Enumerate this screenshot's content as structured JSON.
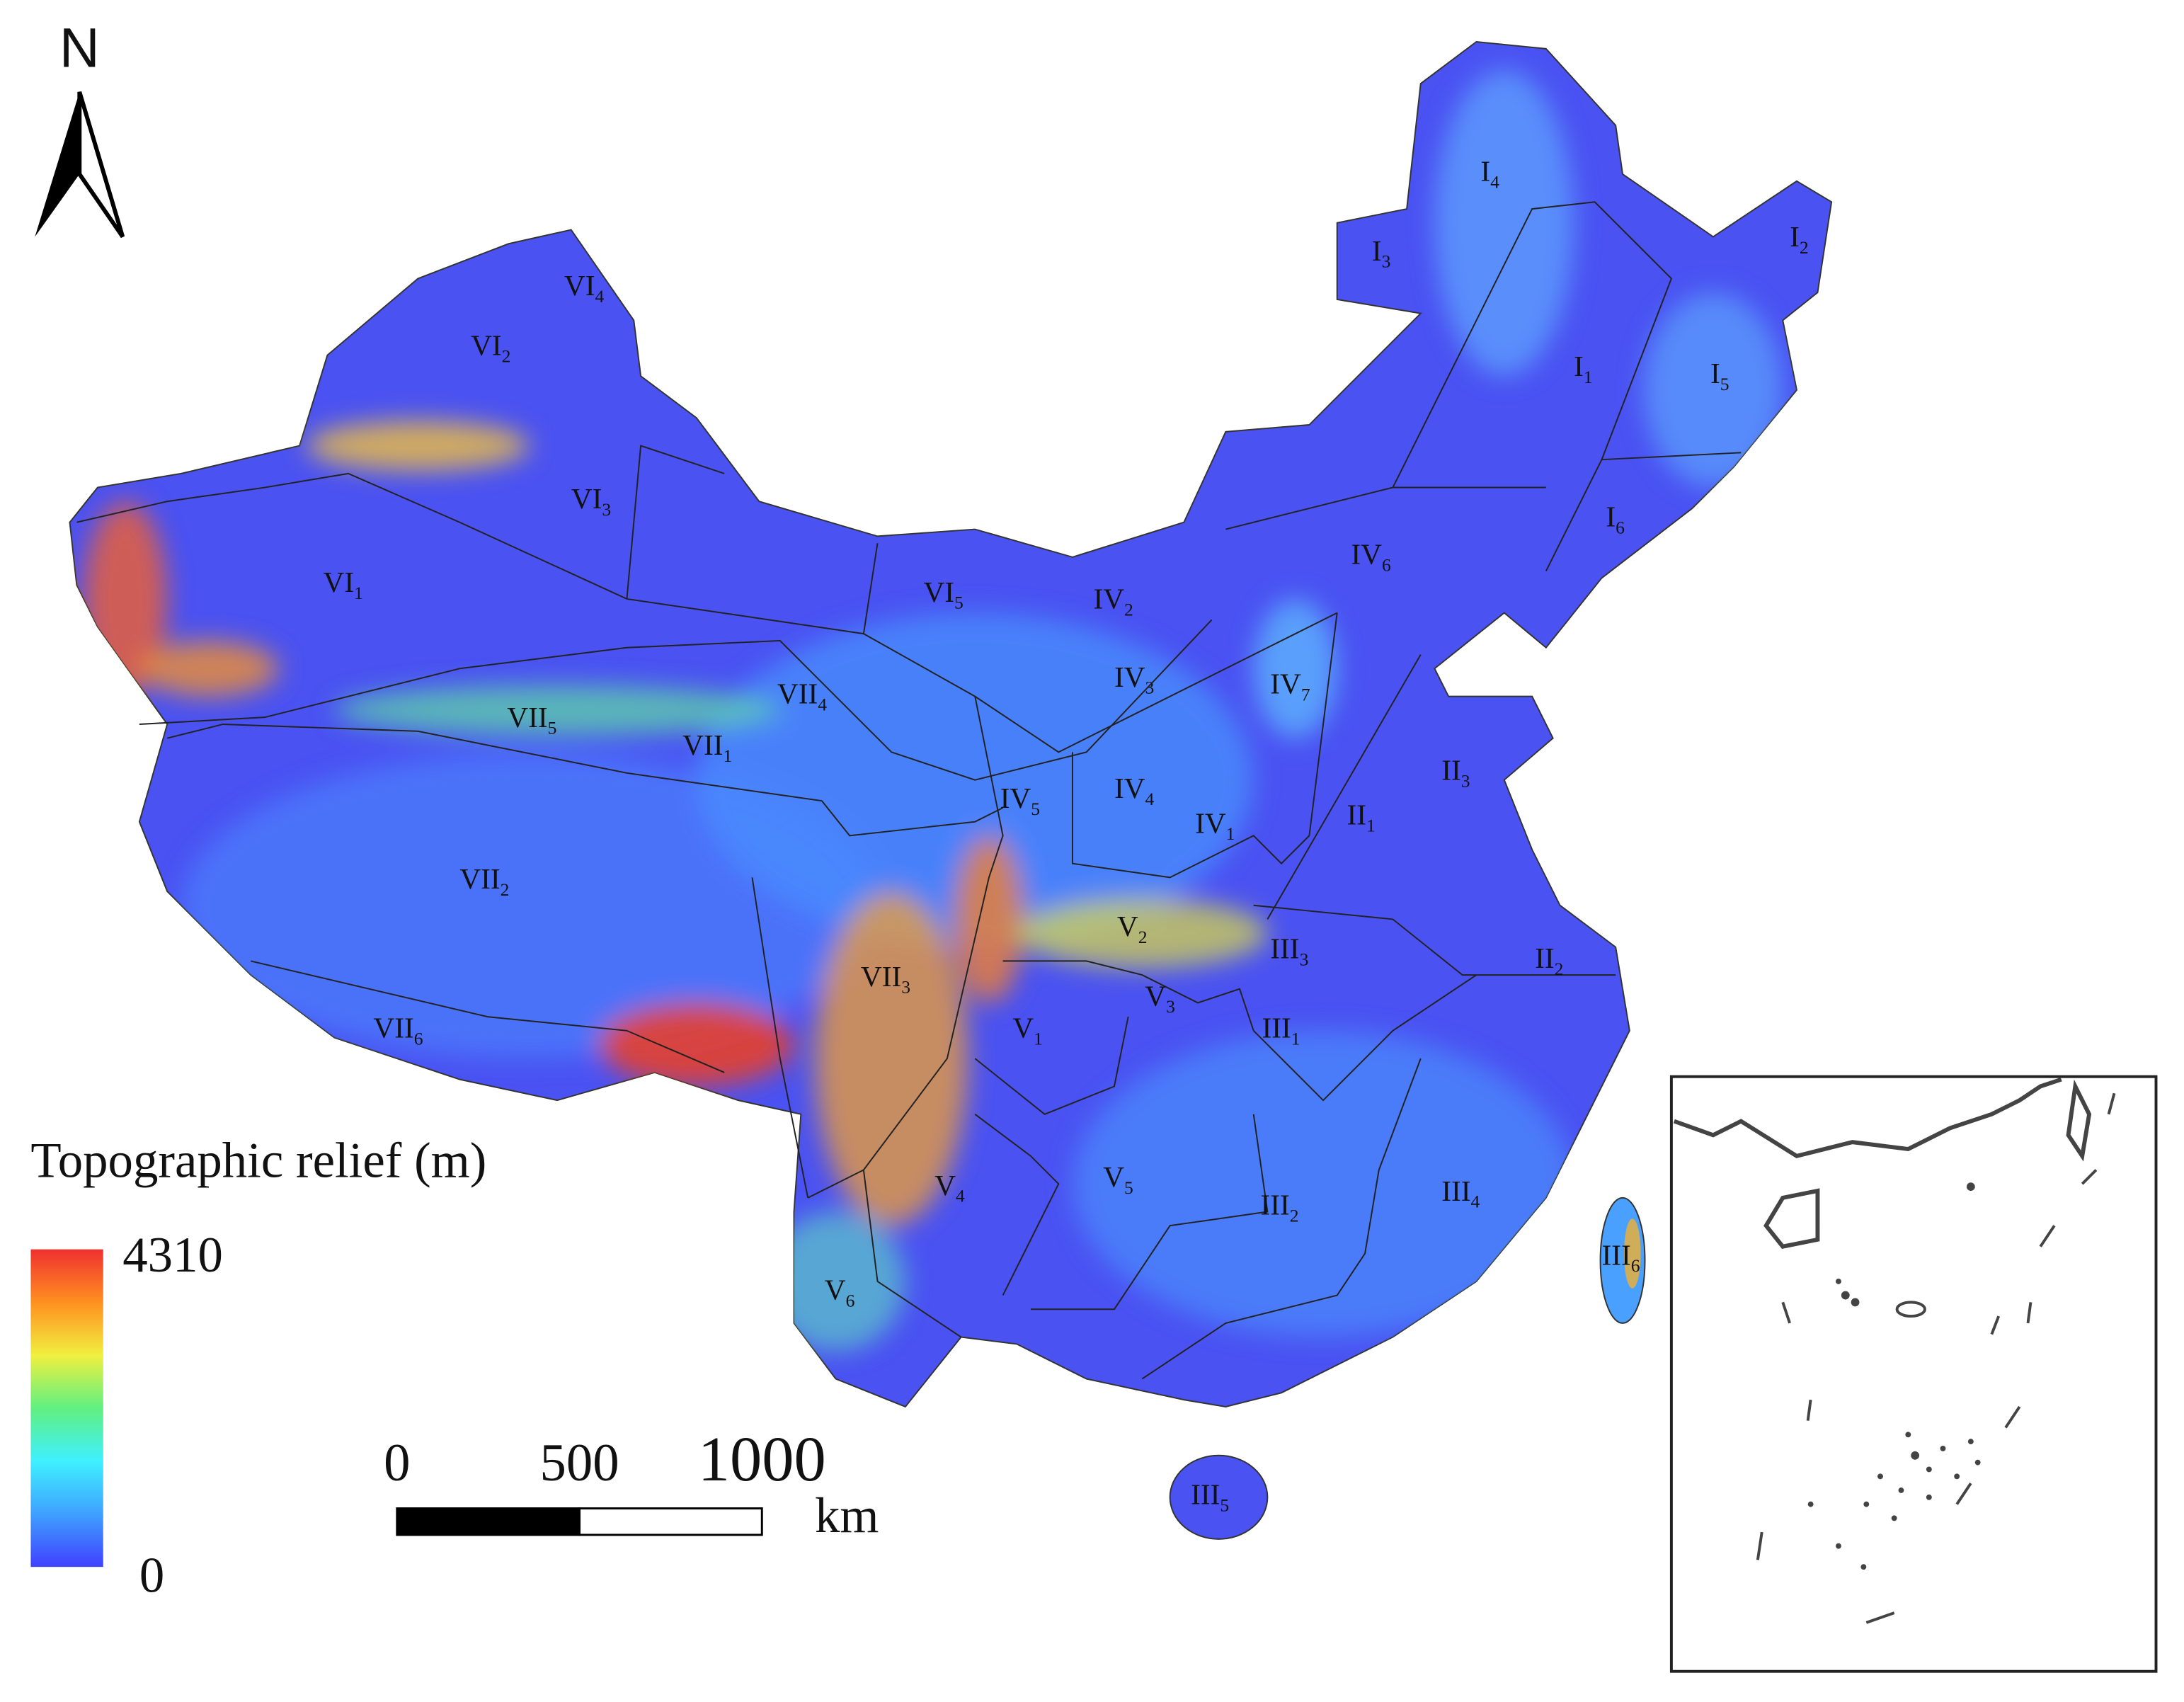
{
  "north_arrow": "N",
  "legend": {
    "title": "Topographic relief (m)",
    "min": 0,
    "max": 4310,
    "colors": [
      "#4040ff",
      "#3fa0ff",
      "#3ff0ff",
      "#60f080",
      "#f0f040",
      "#ff9020",
      "#f03030"
    ]
  },
  "scale_bar": {
    "ticks": [
      0,
      500,
      1000
    ],
    "unit": "km"
  },
  "regions": [
    {
      "numeral": "I",
      "sub": "4"
    },
    {
      "numeral": "I",
      "sub": "3"
    },
    {
      "numeral": "I",
      "sub": "2"
    },
    {
      "numeral": "I",
      "sub": "1"
    },
    {
      "numeral": "I",
      "sub": "5"
    },
    {
      "numeral": "I",
      "sub": "6"
    },
    {
      "numeral": "VI",
      "sub": "4"
    },
    {
      "numeral": "VI",
      "sub": "2"
    },
    {
      "numeral": "VI",
      "sub": "3"
    },
    {
      "numeral": "VI",
      "sub": "1"
    },
    {
      "numeral": "VI",
      "sub": "5"
    },
    {
      "numeral": "IV",
      "sub": "2"
    },
    {
      "numeral": "IV",
      "sub": "6"
    },
    {
      "numeral": "IV",
      "sub": "3"
    },
    {
      "numeral": "IV",
      "sub": "7"
    },
    {
      "numeral": "VII",
      "sub": "4"
    },
    {
      "numeral": "VII",
      "sub": "5"
    },
    {
      "numeral": "VII",
      "sub": "1"
    },
    {
      "numeral": "IV",
      "sub": "5"
    },
    {
      "numeral": "IV",
      "sub": "4"
    },
    {
      "numeral": "IV",
      "sub": "1"
    },
    {
      "numeral": "II",
      "sub": "3"
    },
    {
      "numeral": "II",
      "sub": "1"
    },
    {
      "numeral": "VII",
      "sub": "2"
    },
    {
      "numeral": "V",
      "sub": "2"
    },
    {
      "numeral": "III",
      "sub": "3"
    },
    {
      "numeral": "II",
      "sub": "2"
    },
    {
      "numeral": "VII",
      "sub": "3"
    },
    {
      "numeral": "V",
      "sub": "3"
    },
    {
      "numeral": "V",
      "sub": "1"
    },
    {
      "numeral": "III",
      "sub": "1"
    },
    {
      "numeral": "VII",
      "sub": "6"
    },
    {
      "numeral": "V",
      "sub": "4"
    },
    {
      "numeral": "V",
      "sub": "5"
    },
    {
      "numeral": "III",
      "sub": "2"
    },
    {
      "numeral": "III",
      "sub": "4"
    },
    {
      "numeral": "III",
      "sub": "6"
    },
    {
      "numeral": "V",
      "sub": "6"
    },
    {
      "numeral": "III",
      "sub": "5"
    }
  ]
}
